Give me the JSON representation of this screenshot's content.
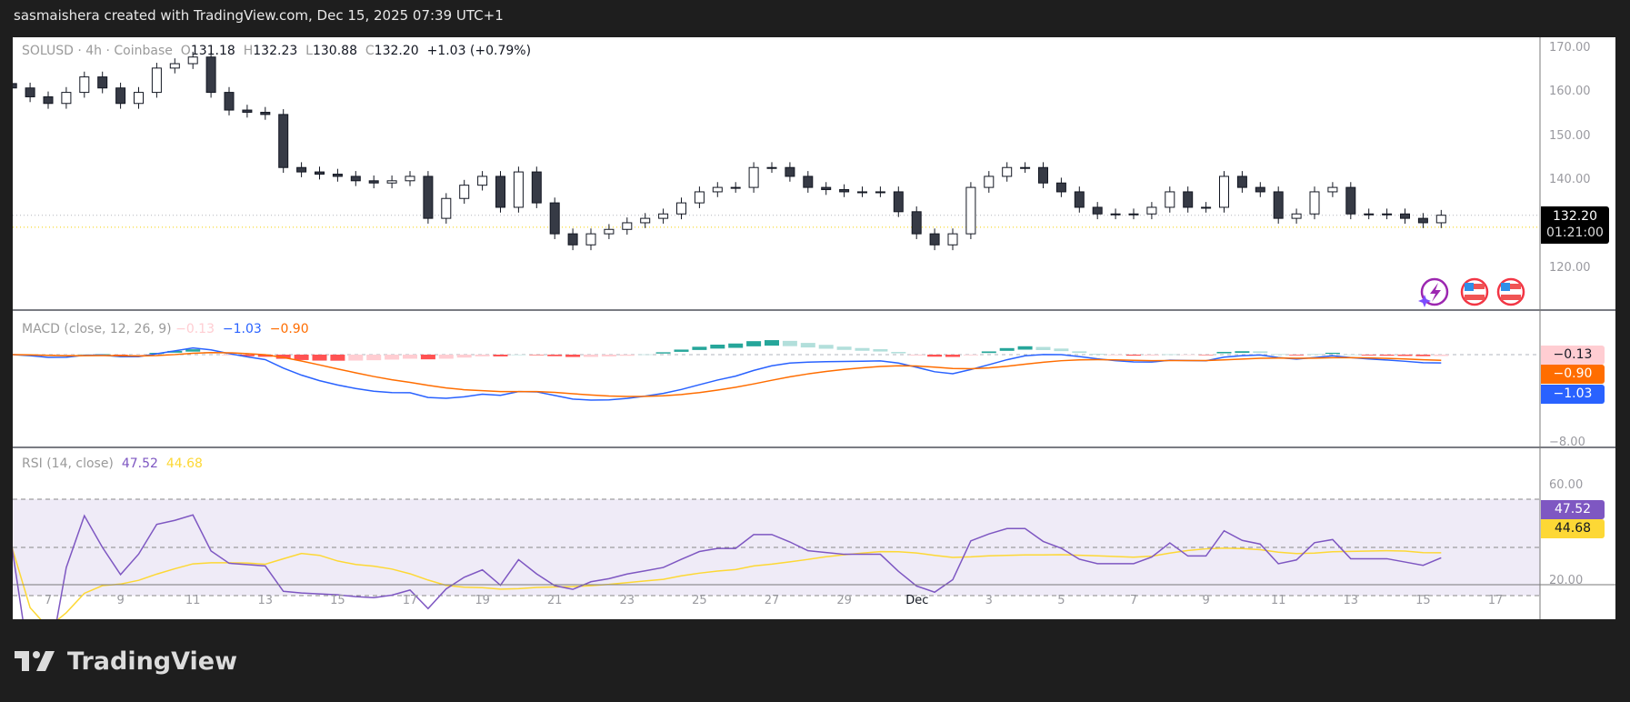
{
  "header": {
    "title": "sasmaishera created with TradingView.com, Dec 15, 2025 07:39 UTC+1"
  },
  "legend": {
    "symbol": "SOLUSD · 4h · Coinbase",
    "o_label": "O",
    "o": "131.18",
    "h_label": "H",
    "h": "132.23",
    "l_label": "L",
    "l": "130.88",
    "c_label": "C",
    "c": "132.20",
    "change": "+1.03 (+0.79%)"
  },
  "macd_legend": {
    "title": "MACD (close, 12, 26, 9)",
    "hist": "−0.13",
    "macd": "−1.03",
    "signal": "−0.90"
  },
  "rsi_legend": {
    "title": "RSI (14, close)",
    "rsi": "47.52",
    "ma": "44.68"
  },
  "price_axis": {
    "ticks": [
      "170.00",
      "160.00",
      "150.00",
      "140.00",
      "120.00"
    ],
    "last_price": "132.20",
    "countdown": "01:21:00"
  },
  "macd_axis": {
    "tags": {
      "hist": "−0.13",
      "signal": "−0.90",
      "macd": "−1.03"
    },
    "bottom_tick": "−8.00"
  },
  "rsi_axis": {
    "ticks": [
      "60.00",
      "20.00"
    ],
    "tags": {
      "rsi": "47.52",
      "ma": "44.68"
    }
  },
  "time_axis": {
    "labels": [
      "7",
      "9",
      "11",
      "13",
      "15",
      "17",
      "19",
      "21",
      "23",
      "25",
      "27",
      "29",
      "Dec",
      "3",
      "5",
      "7",
      "9",
      "11",
      "13",
      "15",
      "17"
    ]
  },
  "logo": {
    "text": "TradingView"
  },
  "colors": {
    "up": "#ffffff",
    "down": "#363a45",
    "macd": "#2962ff",
    "signal": "#ff6d00",
    "hist_up": "#26a69a",
    "hist_up_light": "#b2dfdb",
    "hist_dn": "#ff5252",
    "hist_dn_light": "#ffcdd2",
    "rsi": "#7e57c2",
    "rsi_ma": "#fdd835",
    "rsi_band": "#efebf7"
  },
  "chart_data": {
    "type": "candlestick",
    "symbol": "SOLUSD",
    "start_day_offset": -1,
    "step_days": 0.5,
    "close": [
      161,
      159,
      157.5,
      160,
      163.5,
      161,
      157.5,
      160,
      165.5,
      166.5,
      168,
      160,
      156,
      155.5,
      155,
      143,
      142,
      141.5,
      141,
      140,
      139.5,
      140,
      141,
      131.5,
      136,
      139,
      141,
      134,
      142,
      135,
      128,
      125.5,
      128,
      129,
      130.5,
      131.5,
      132.5,
      135,
      137.5,
      138.5,
      138.5,
      143,
      143,
      141,
      138.5,
      138,
      137.5,
      137.5,
      137.5,
      133,
      128,
      125.5,
      128,
      138.5,
      141,
      143,
      143,
      139.5,
      137.5,
      134,
      132.5,
      132.5,
      132.5,
      134,
      137.5,
      134,
      134,
      141,
      138.5,
      137.5,
      131.5,
      132.5,
      137.5,
      138.5,
      132.5,
      132.5,
      132.5,
      131.5,
      130.5,
      132.2
    ],
    "ylim": [
      112,
      172
    ],
    "indicators": [
      "MACD (close, 12, 26, 9)",
      "RSI (14, close)"
    ]
  }
}
